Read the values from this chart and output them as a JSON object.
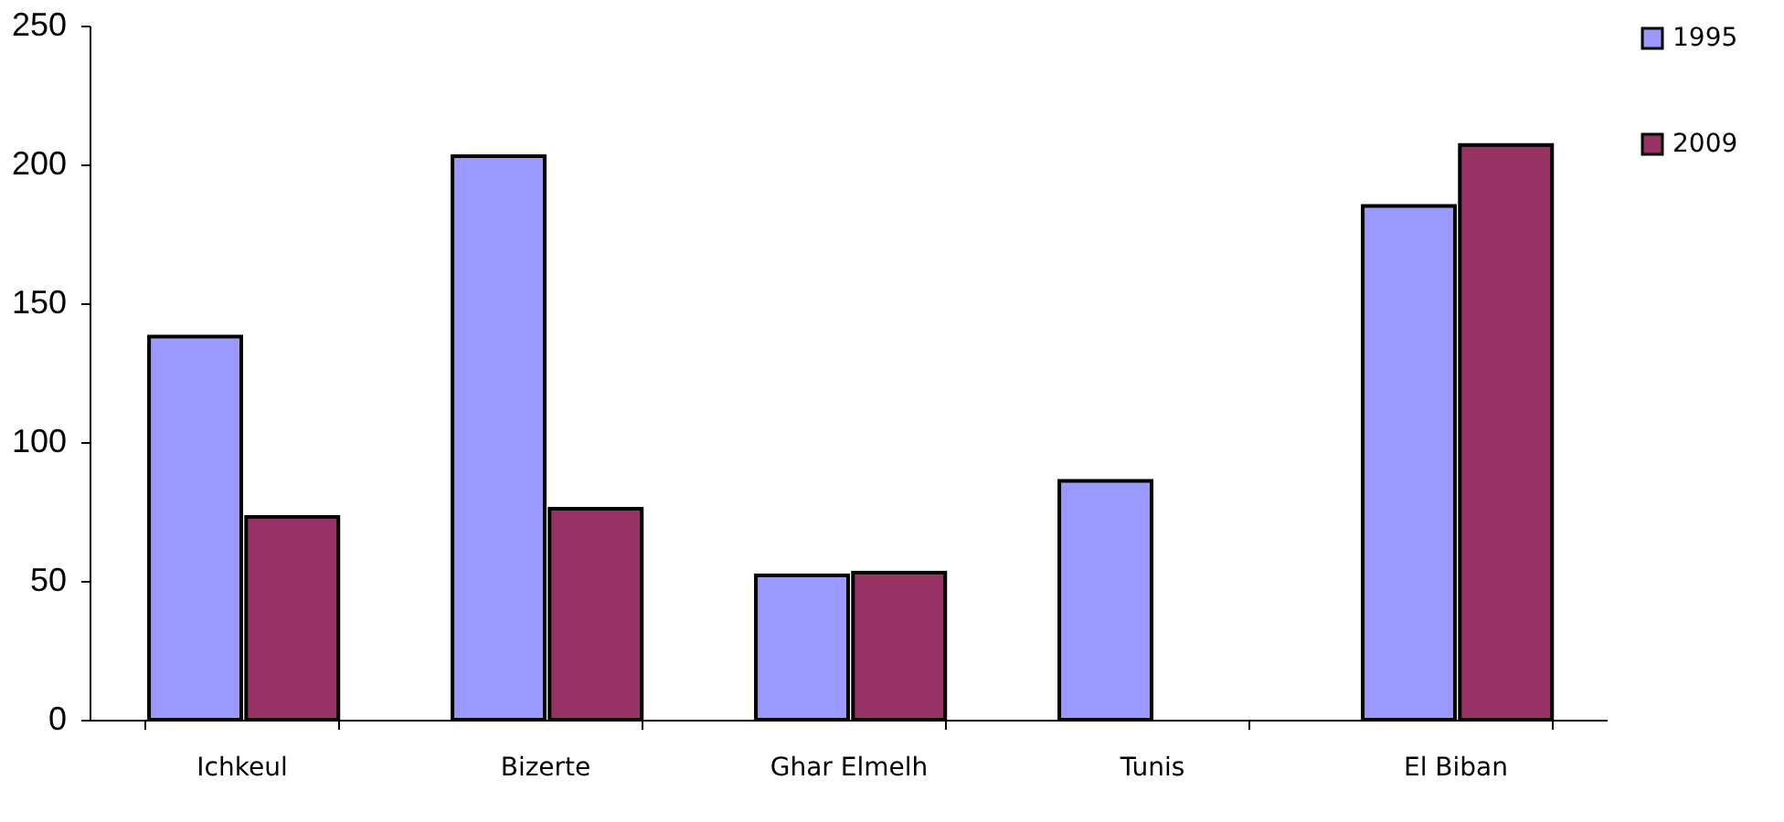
{
  "chart_data": {
    "type": "bar",
    "categories": [
      "Ichkeul",
      "Bizerte",
      "Ghar Elmelh",
      "Tunis",
      "El Biban"
    ],
    "series": [
      {
        "name": "1995",
        "color": "#9999ff",
        "values": [
          138,
          203,
          52,
          86,
          185
        ]
      },
      {
        "name": "2009",
        "color": "#993366",
        "values": [
          73,
          76,
          53,
          null,
          207
        ]
      }
    ],
    "ylim": [
      0,
      250
    ],
    "yticks": [
      0,
      50,
      100,
      150,
      200,
      250
    ],
    "grid": false,
    "legend": "top right"
  }
}
